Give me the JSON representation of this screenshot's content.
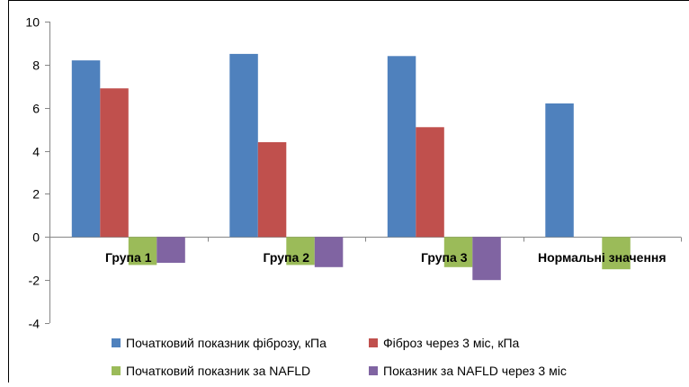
{
  "chart_data": {
    "type": "bar",
    "title": "",
    "xlabel": "",
    "ylabel": "",
    "ylim": [
      -4,
      10
    ],
    "yticks": [
      -4,
      -2,
      0,
      2,
      4,
      6,
      8,
      10
    ],
    "grid": false,
    "legend_position": "bottom",
    "categories": [
      "Група 1",
      "Група 2",
      "Група 3",
      "Нормальні значення"
    ],
    "series": [
      {
        "name": "Початковий показник фіброзу, кПа",
        "color": "#4F81BD",
        "values": [
          8.2,
          8.5,
          8.4,
          6.2
        ]
      },
      {
        "name": "Фіброз через 3 міс, кПа",
        "color": "#C0504D",
        "values": [
          6.9,
          4.4,
          5.1,
          null
        ]
      },
      {
        "name": "Початковий показник за NAFLD",
        "color": "#9BBB59",
        "values": [
          -1.3,
          -1.3,
          -1.4,
          -1.5
        ]
      },
      {
        "name": "Показник за NAFLD через 3 міс",
        "color": "#8064A2",
        "values": [
          -1.2,
          -1.4,
          -2.0,
          null
        ]
      }
    ]
  }
}
